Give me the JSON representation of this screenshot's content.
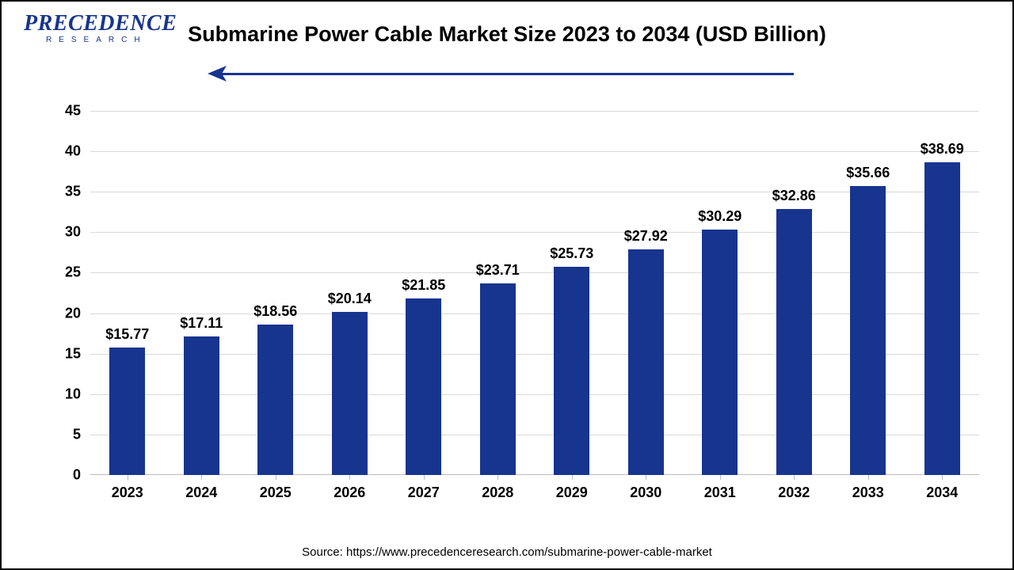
{
  "logo": {
    "brand": "PRECEDENCE",
    "sub": "RESEARCH"
  },
  "title": "Submarine Power Cable Market Size 2023 to 2034 (USD Billion)",
  "source": "Source: https://www.precedenceresearch.com/submarine-power-cable-market",
  "chart": {
    "type": "bar",
    "categories": [
      "2023",
      "2024",
      "2025",
      "2026",
      "2027",
      "2028",
      "2029",
      "2030",
      "2031",
      "2032",
      "2033",
      "2034"
    ],
    "values": [
      15.77,
      17.11,
      18.56,
      20.14,
      21.85,
      23.71,
      25.73,
      27.92,
      30.29,
      32.86,
      35.66,
      38.69
    ],
    "value_labels": [
      "$15.77",
      "$17.11",
      "$18.56",
      "$20.14",
      "$21.85",
      "$23.71",
      "$25.73",
      "$27.92",
      "$30.29",
      "$32.86",
      "$35.66",
      "$38.69"
    ],
    "bar_color": "#17348f",
    "ylim": [
      0,
      45
    ],
    "ytick_step": 5,
    "yticks": [
      0,
      5,
      10,
      15,
      20,
      25,
      30,
      35,
      40,
      45
    ],
    "grid_color": "#d9d9d9",
    "background_color": "#ffffff",
    "axis_color": "#bcbcbc",
    "tick_fontsize": 18,
    "tick_fontweight": "bold",
    "bar_label_fontsize": 18,
    "bar_label_fontweight": "bold",
    "title_fontsize": 27,
    "title_fontweight": "bold",
    "title_color": "#000000",
    "bar_width_ratio": 0.48,
    "arrow_color": "#17348f",
    "source_fontsize": 15
  }
}
